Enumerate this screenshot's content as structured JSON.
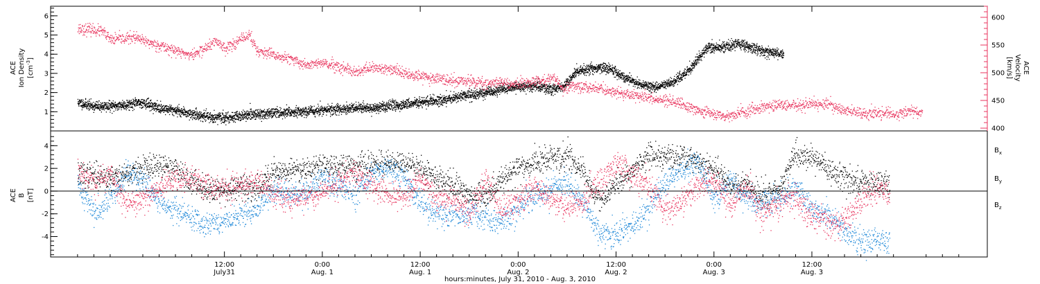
{
  "chart_data": [
    {
      "type": "scatter",
      "panel": "top",
      "ylabel": {
        "line1": "ACE",
        "line2": "Ion Density",
        "unit_base": "[cm",
        "unit_sup": "-3",
        "unit_end": "]"
      },
      "y2label": {
        "line1": "ACE",
        "line2": "Velocity",
        "unit": "[km/s]"
      },
      "ylim": [
        0,
        6.5
      ],
      "y2lim": [
        395,
        620
      ],
      "yticks": [
        1,
        2,
        3,
        4,
        5,
        6
      ],
      "y2ticks": [
        400,
        450,
        500,
        550,
        600
      ],
      "colors": {
        "density": "#000000",
        "velocity": "#e8335d",
        "right_axis": "#e8335d"
      },
      "series": [
        {
          "name": "",
          "role": "ion_density",
          "points": [
            [
              -6.0,
              1.5
            ],
            [
              -4.0,
              1.3
            ],
            [
              -2.0,
              1.3
            ],
            [
              0.0,
              1.4
            ],
            [
              2.0,
              1.5
            ],
            [
              4.0,
              1.2
            ],
            [
              6.0,
              1.1
            ],
            [
              8.0,
              0.9
            ],
            [
              10.0,
              0.75
            ],
            [
              12.0,
              0.7
            ],
            [
              14.0,
              0.8
            ],
            [
              16.0,
              0.9
            ],
            [
              18.0,
              0.95
            ],
            [
              20.0,
              1.0
            ],
            [
              22.0,
              1.05
            ],
            [
              24.0,
              1.1
            ],
            [
              26.0,
              1.15
            ],
            [
              28.0,
              1.2
            ],
            [
              30.0,
              1.2
            ],
            [
              32.0,
              1.3
            ],
            [
              34.0,
              1.4
            ],
            [
              36.0,
              1.5
            ],
            [
              38.0,
              1.6
            ],
            [
              40.0,
              1.75
            ],
            [
              42.0,
              1.9
            ],
            [
              44.0,
              2.0
            ],
            [
              46.0,
              2.2
            ],
            [
              48.0,
              2.3
            ],
            [
              50.0,
              2.35
            ],
            [
              52.0,
              2.2
            ],
            [
              53.5,
              2.3
            ],
            [
              55.0,
              3.1
            ],
            [
              57.0,
              3.3
            ],
            [
              59.0,
              3.3
            ],
            [
              61.0,
              2.8
            ],
            [
              63.0,
              2.4
            ],
            [
              65.0,
              2.3
            ],
            [
              67.0,
              2.6
            ],
            [
              69.0,
              3.2
            ],
            [
              71.0,
              4.3
            ],
            [
              73.0,
              4.4
            ],
            [
              75.0,
              4.6
            ],
            [
              77.0,
              4.3
            ],
            [
              79.0,
              4.1
            ],
            [
              80.5,
              4.0
            ]
          ]
        },
        {
          "name": "",
          "role": "velocity",
          "points": [
            [
              -6.0,
              580
            ],
            [
              -4.0,
              578
            ],
            [
              -3.0,
              575
            ],
            [
              -2.0,
              560
            ],
            [
              0.0,
              563
            ],
            [
              0.8,
              565
            ],
            [
              2.0,
              558
            ],
            [
              4.0,
              550
            ],
            [
              6.0,
              540
            ],
            [
              8.0,
              532
            ],
            [
              10.0,
              548
            ],
            [
              11.0,
              558
            ],
            [
              12.0,
              545
            ],
            [
              14.0,
              560
            ],
            [
              15.0,
              570
            ],
            [
              16.0,
              540
            ],
            [
              18.0,
              532
            ],
            [
              20.0,
              525
            ],
            [
              22.0,
              515
            ],
            [
              24.0,
              518
            ],
            [
              26.0,
              510
            ],
            [
              28.0,
              500
            ],
            [
              30.0,
              510
            ],
            [
              32.0,
              507
            ],
            [
              34.0,
              500
            ],
            [
              36.0,
              495
            ],
            [
              38.0,
              490
            ],
            [
              40.0,
              485
            ],
            [
              42.0,
              485
            ],
            [
              44.0,
              480
            ],
            [
              46.0,
              483
            ],
            [
              48.0,
              480
            ],
            [
              50.0,
              485
            ],
            [
              52.0,
              490
            ],
            [
              52.7,
              488
            ],
            [
              53.5,
              470
            ],
            [
              54.5,
              478
            ],
            [
              56.0,
              475
            ],
            [
              58.0,
              472
            ],
            [
              60.0,
              465
            ],
            [
              62.0,
              460
            ],
            [
              64.0,
              455
            ],
            [
              66.0,
              450
            ],
            [
              68.0,
              445
            ],
            [
              70.0,
              432
            ],
            [
              72.0,
              426
            ],
            [
              74.0,
              423
            ],
            [
              76.0,
              430
            ],
            [
              78.0,
              438
            ],
            [
              80.0,
              444
            ],
            [
              82.0,
              440
            ],
            [
              84.0,
              445
            ],
            [
              86.0,
              443
            ],
            [
              88.0,
              432
            ],
            [
              90.0,
              427
            ],
            [
              92.0,
              428
            ],
            [
              94.0,
              425
            ],
            [
              96.0,
              433
            ],
            [
              97.5,
              428
            ]
          ]
        }
      ]
    },
    {
      "type": "scatter",
      "panel": "bottom",
      "ylabel": {
        "line1": "ACE",
        "line2": "B",
        "unit": "[nT]"
      },
      "ylim": [
        -5.8,
        5.3
      ],
      "yticks": [
        -4,
        -2,
        0,
        2,
        4
      ],
      "zero_line": true,
      "legend": [
        "Bx",
        "By",
        "Bz"
      ],
      "series": [
        {
          "name": "Bx",
          "color": "#000000",
          "points": [
            [
              -6,
              1.5
            ],
            [
              -4,
              1.4
            ],
            [
              -2,
              1.3
            ],
            [
              0,
              1.5
            ],
            [
              2,
              2.0
            ],
            [
              4,
              2.2
            ],
            [
              6,
              2.0
            ],
            [
              8,
              0.8
            ],
            [
              10,
              0.3
            ],
            [
              12,
              0.2
            ],
            [
              14,
              0.3
            ],
            [
              16,
              0.3
            ],
            [
              18,
              1.8
            ],
            [
              20,
              1.9
            ],
            [
              22,
              2.1
            ],
            [
              24,
              2.2
            ],
            [
              26,
              2.3
            ],
            [
              28,
              2.2
            ],
            [
              30,
              2.3
            ],
            [
              32,
              2.5
            ],
            [
              34,
              2.4
            ],
            [
              36,
              2.2
            ],
            [
              38,
              1.0
            ],
            [
              40,
              0.5
            ],
            [
              42,
              -0.3
            ],
            [
              44,
              -0.5
            ],
            [
              46,
              1.2
            ],
            [
              48,
              2.0
            ],
            [
              50,
              2.6
            ],
            [
              52,
              2.8
            ],
            [
              54,
              3.0
            ],
            [
              56,
              1.5
            ],
            [
              58,
              -1.0
            ],
            [
              60,
              0.8
            ],
            [
              62,
              1.8
            ],
            [
              64,
              3.2
            ],
            [
              66,
              3.2
            ],
            [
              68,
              3.0
            ],
            [
              70,
              2.6
            ],
            [
              72,
              2.0
            ],
            [
              74,
              0.6
            ],
            [
              76,
              0.5
            ],
            [
              78,
              -0.5
            ],
            [
              80,
              0.2
            ],
            [
              82,
              3.3
            ],
            [
              84,
              3.0
            ],
            [
              86,
              1.8
            ],
            [
              88,
              1.3
            ],
            [
              90,
              0.8
            ],
            [
              92,
              0.8
            ],
            [
              93.5,
              0.5
            ]
          ]
        },
        {
          "name": "By",
          "color": "#1f88d8",
          "points": [
            [
              -6,
              0.5
            ],
            [
              -4,
              -1.8
            ],
            [
              -2,
              -0.5
            ],
            [
              0,
              1.5
            ],
            [
              2,
              1.0
            ],
            [
              4,
              -1.0
            ],
            [
              6,
              -1.5
            ],
            [
              8,
              -2.5
            ],
            [
              10,
              -2.8
            ],
            [
              12,
              -2.7
            ],
            [
              14,
              -2.2
            ],
            [
              16,
              -1.5
            ],
            [
              18,
              0.2
            ],
            [
              20,
              -0.3
            ],
            [
              22,
              -0.2
            ],
            [
              24,
              1.2
            ],
            [
              26,
              0.5
            ],
            [
              28,
              -0.3
            ],
            [
              30,
              1.5
            ],
            [
              32,
              2.3
            ],
            [
              34,
              1.2
            ],
            [
              36,
              -1.0
            ],
            [
              38,
              -2.0
            ],
            [
              40,
              -2.3
            ],
            [
              42,
              -1.8
            ],
            [
              44,
              -2.3
            ],
            [
              46,
              -2.8
            ],
            [
              48,
              -1.5
            ],
            [
              50,
              -0.3
            ],
            [
              52,
              0.2
            ],
            [
              54,
              0.5
            ],
            [
              56,
              -0.8
            ],
            [
              58,
              -3.8
            ],
            [
              60,
              -3.8
            ],
            [
              62,
              -3.0
            ],
            [
              64,
              -1.5
            ],
            [
              66,
              1.0
            ],
            [
              68,
              2.0
            ],
            [
              70,
              2.5
            ],
            [
              72,
              -0.5
            ],
            [
              74,
              1.0
            ],
            [
              76,
              -0.8
            ],
            [
              78,
              -1.0
            ],
            [
              80,
              -0.5
            ],
            [
              82,
              0.5
            ],
            [
              84,
              -1.5
            ],
            [
              86,
              -2.0
            ],
            [
              88,
              -3.5
            ],
            [
              90,
              -4.5
            ],
            [
              92,
              -4.3
            ],
            [
              93.5,
              -4.2
            ]
          ]
        },
        {
          "name": "Bz",
          "color": "#e8335d",
          "points": [
            [
              -6,
              2.0
            ],
            [
              -4,
              0.8
            ],
            [
              -2,
              1.5
            ],
            [
              0,
              -1.0
            ],
            [
              2,
              -0.8
            ],
            [
              4,
              0.2
            ],
            [
              6,
              1.2
            ],
            [
              8,
              1.0
            ],
            [
              10,
              0.5
            ],
            [
              12,
              0.3
            ],
            [
              14,
              0.5
            ],
            [
              16,
              1.0
            ],
            [
              18,
              -0.3
            ],
            [
              20,
              -0.8
            ],
            [
              22,
              -0.5
            ],
            [
              24,
              0.0
            ],
            [
              26,
              0.8
            ],
            [
              28,
              1.8
            ],
            [
              30,
              0.5
            ],
            [
              32,
              -0.2
            ],
            [
              34,
              -0.5
            ],
            [
              36,
              1.2
            ],
            [
              38,
              -0.8
            ],
            [
              40,
              -0.5
            ],
            [
              42,
              -2.0
            ],
            [
              44,
              1.0
            ],
            [
              46,
              -1.5
            ],
            [
              48,
              -1.0
            ],
            [
              50,
              0.5
            ],
            [
              52,
              -0.8
            ],
            [
              54,
              -1.5
            ],
            [
              56,
              -0.8
            ],
            [
              58,
              1.0
            ],
            [
              60,
              2.5
            ],
            [
              62,
              1.5
            ],
            [
              64,
              0.5
            ],
            [
              66,
              -1.8
            ],
            [
              68,
              -1.0
            ],
            [
              70,
              0.5
            ],
            [
              72,
              1.0
            ],
            [
              74,
              -1.2
            ],
            [
              76,
              0.5
            ],
            [
              78,
              -2.0
            ],
            [
              80,
              -1.0
            ],
            [
              82,
              -0.5
            ],
            [
              84,
              -2.2
            ],
            [
              86,
              -2.8
            ],
            [
              88,
              -2.5
            ],
            [
              90,
              -1.0
            ],
            [
              92,
              0.5
            ],
            [
              93.5,
              -0.3
            ]
          ]
        }
      ]
    }
  ],
  "x_axis": {
    "xlim": [
      -9.3,
      105.5
    ],
    "ticks": [
      {
        "h": 12,
        "line1": "12:00",
        "line2": "July31"
      },
      {
        "h": 24,
        "line1": "0:00",
        "line2": "Aug. 1"
      },
      {
        "h": 36,
        "line1": "12:00",
        "line2": "Aug. 1"
      },
      {
        "h": 48,
        "line1": "0:00",
        "line2": "Aug. 2"
      },
      {
        "h": 60,
        "line1": "12:00",
        "line2": "Aug. 2"
      },
      {
        "h": 72,
        "line1": "0:00",
        "line2": "Aug. 3"
      },
      {
        "h": 84,
        "line1": "12:00",
        "line2": "Aug. 3"
      }
    ],
    "xlabel": "hours:minutes, July 31, 2010 - Aug.  3, 2010"
  },
  "legend_labels": {
    "bx": {
      "base": "B",
      "sub": "x"
    },
    "by": {
      "base": "B",
      "sub": "y"
    },
    "bz": {
      "base": "B",
      "sub": "z"
    }
  }
}
